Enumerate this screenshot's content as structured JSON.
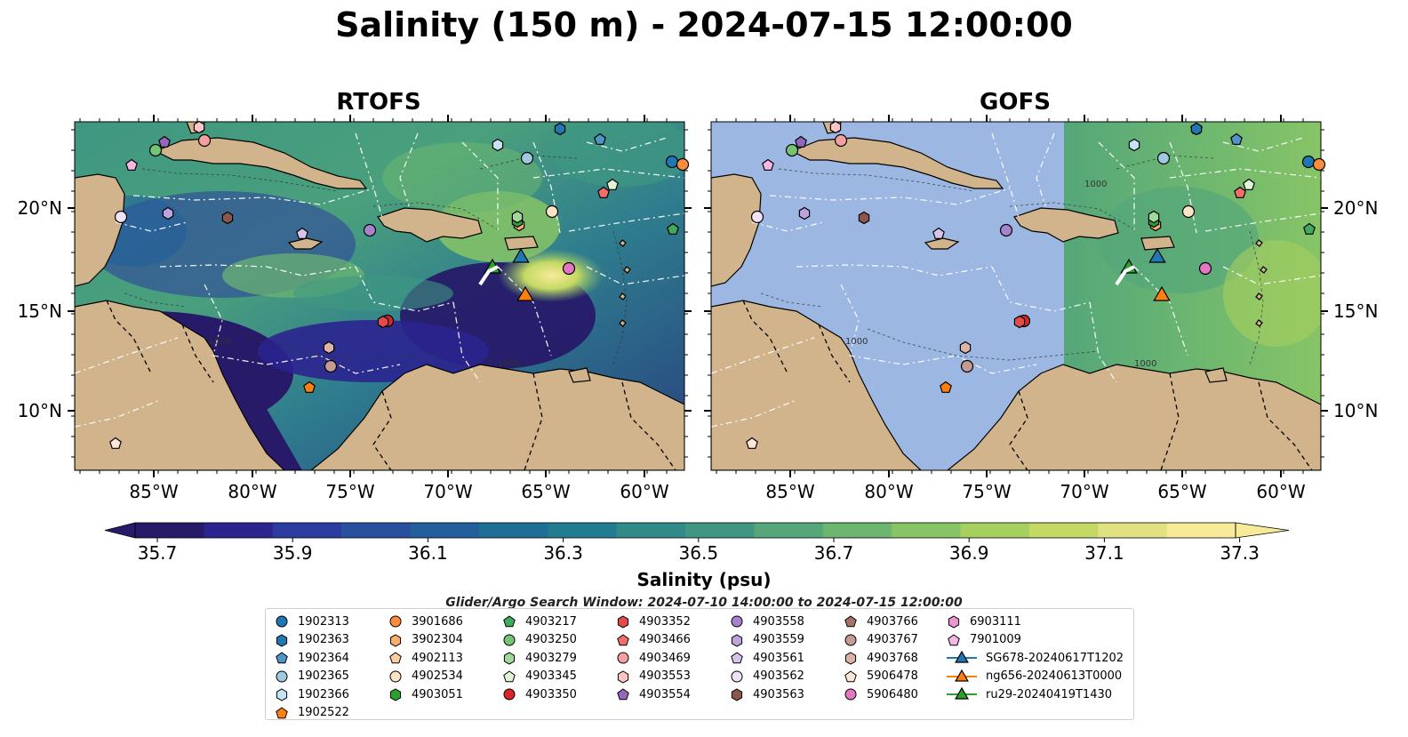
{
  "title": "Salinity (150 m) - 2024-07-15 12:00:00",
  "panels": [
    {
      "title": "RTOFS",
      "type": "rtofs"
    },
    {
      "title": "GOFS",
      "type": "gofs"
    }
  ],
  "lat_labels": [
    "20°N",
    "15°N",
    "10°N"
  ],
  "lon_labels": [
    "85°W",
    "80°W",
    "75°W",
    "70°W",
    "65°W",
    "60°W"
  ],
  "isobath_labels": [
    "1000",
    "1000",
    "1000",
    "1000",
    "1000"
  ],
  "colorbar": {
    "label": "Salinity (psu)",
    "ticks": [
      "35.7",
      "35.9",
      "36.1",
      "36.3",
      "36.5",
      "36.7",
      "36.9",
      "37.1",
      "37.3"
    ],
    "colors": [
      "#271a69",
      "#2b248f",
      "#2c3ca0",
      "#28509f",
      "#235f9b",
      "#1f6e95",
      "#227c8f",
      "#2f8a88",
      "#3f9781",
      "#55a77a",
      "#6cb670",
      "#87c466",
      "#a6cf5f",
      "#c4d964",
      "#e0e182",
      "#f7eb99"
    ]
  },
  "search_window": "Glider/Argo Search Window: 2024-07-10 14:00:00 to 2024-07-15 12:00:00",
  "legend": [
    {
      "label": "1902313",
      "marker": "circle",
      "color": "#1f77b4"
    },
    {
      "label": "1902363",
      "marker": "hexagon",
      "color": "#1f77b4"
    },
    {
      "label": "1902364",
      "marker": "pentagon",
      "color": "#4f95c8"
    },
    {
      "label": "1902365",
      "marker": "circle",
      "color": "#9ecae1"
    },
    {
      "label": "1902366",
      "marker": "hexagon",
      "color": "#c6e3f5"
    },
    {
      "label": "1902522",
      "marker": "pentagon",
      "color": "#ff7f0e"
    },
    {
      "label": "3901686",
      "marker": "circle",
      "color": "#fd8d3c"
    },
    {
      "label": "3902304",
      "marker": "hexagon",
      "color": "#fdae6b"
    },
    {
      "label": "4902113",
      "marker": "pentagon",
      "color": "#fdd0a2"
    },
    {
      "label": "4902534",
      "marker": "circle",
      "color": "#ffe4c4"
    },
    {
      "label": "4903051",
      "marker": "hexagon",
      "color": "#2ca02c"
    },
    {
      "label": "4903217",
      "marker": "pentagon",
      "color": "#41ab5d"
    },
    {
      "label": "4903250",
      "marker": "circle",
      "color": "#74c476"
    },
    {
      "label": "4903279",
      "marker": "hexagon",
      "color": "#a1d99b"
    },
    {
      "label": "4903345",
      "marker": "pentagon",
      "color": "#dff5d6"
    },
    {
      "label": "4903350",
      "marker": "circle",
      "color": "#d62728"
    },
    {
      "label": "4903352",
      "marker": "hexagon",
      "color": "#e34a4a"
    },
    {
      "label": "4903466",
      "marker": "pentagon",
      "color": "#f46d6d"
    },
    {
      "label": "4903469",
      "marker": "circle",
      "color": "#f4a0a0"
    },
    {
      "label": "4903553",
      "marker": "hexagon",
      "color": "#fcc5c5"
    },
    {
      "label": "4903554",
      "marker": "pentagon",
      "color": "#9467bd"
    },
    {
      "label": "4903558",
      "marker": "circle",
      "color": "#a683cc"
    },
    {
      "label": "4903559",
      "marker": "hexagon",
      "color": "#bfa3dd"
    },
    {
      "label": "4903561",
      "marker": "pentagon",
      "color": "#d6c4ea"
    },
    {
      "label": "4903562",
      "marker": "circle",
      "color": "#efe2f7"
    },
    {
      "label": "4903563",
      "marker": "hexagon",
      "color": "#8c564b"
    },
    {
      "label": "4903766",
      "marker": "pentagon",
      "color": "#a47468"
    },
    {
      "label": "4903767",
      "marker": "circle",
      "color": "#c49c94"
    },
    {
      "label": "4903768",
      "marker": "hexagon",
      "color": "#ddb3a8"
    },
    {
      "label": "5906478",
      "marker": "pentagon",
      "color": "#fbe4d8"
    },
    {
      "label": "5906480",
      "marker": "circle",
      "color": "#e377c2"
    },
    {
      "label": "6903111",
      "marker": "hexagon",
      "color": "#ec95d2"
    },
    {
      "label": "7901009",
      "marker": "pentagon",
      "color": "#f7b6e3"
    },
    {
      "label": "SG678-20240617T1202",
      "marker": "triangle",
      "color": "#1f77b4"
    },
    {
      "label": "ng656-20240613T0000",
      "marker": "triangle",
      "color": "#ff7f0e"
    },
    {
      "label": "ru29-20240419T1430",
      "marker": "triangle",
      "color": "#2ca02c"
    }
  ],
  "colors": {
    "land": "#d2b48c",
    "ocean_background": "#9bb7e2",
    "coastline": "#000000",
    "eez_lines": "#ffffff"
  }
}
